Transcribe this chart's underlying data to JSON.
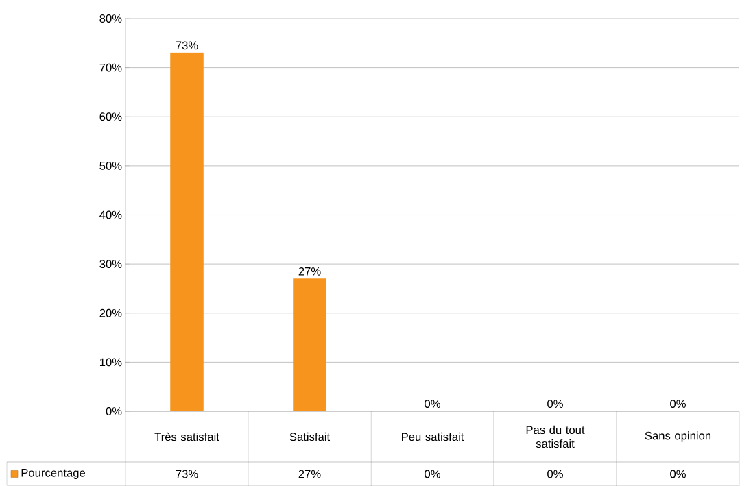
{
  "chart_data": {
    "type": "bar",
    "categories": [
      "Très satisfait",
      "Satisfait",
      "Peu satisfait",
      "Pas du tout satisfait",
      "Sans opinion"
    ],
    "series": [
      {
        "name": "Pourcentage",
        "color": "#f7941d",
        "values": [
          73,
          27,
          0,
          0,
          0
        ]
      }
    ],
    "value_labels": [
      "73%",
      "27%",
      "0%",
      "0%",
      "0%"
    ],
    "ylim": [
      0,
      80
    ],
    "yticks": [
      {
        "value": 0,
        "label": "0%"
      },
      {
        "value": 10,
        "label": "10%"
      },
      {
        "value": 20,
        "label": "20%"
      },
      {
        "value": 30,
        "label": "30%"
      },
      {
        "value": 40,
        "label": "40%"
      },
      {
        "value": 50,
        "label": "50%"
      },
      {
        "value": 60,
        "label": "60%"
      },
      {
        "value": 70,
        "label": "70%"
      },
      {
        "value": 80,
        "label": "80%"
      }
    ],
    "grid": "y",
    "legend": "bottom left"
  }
}
